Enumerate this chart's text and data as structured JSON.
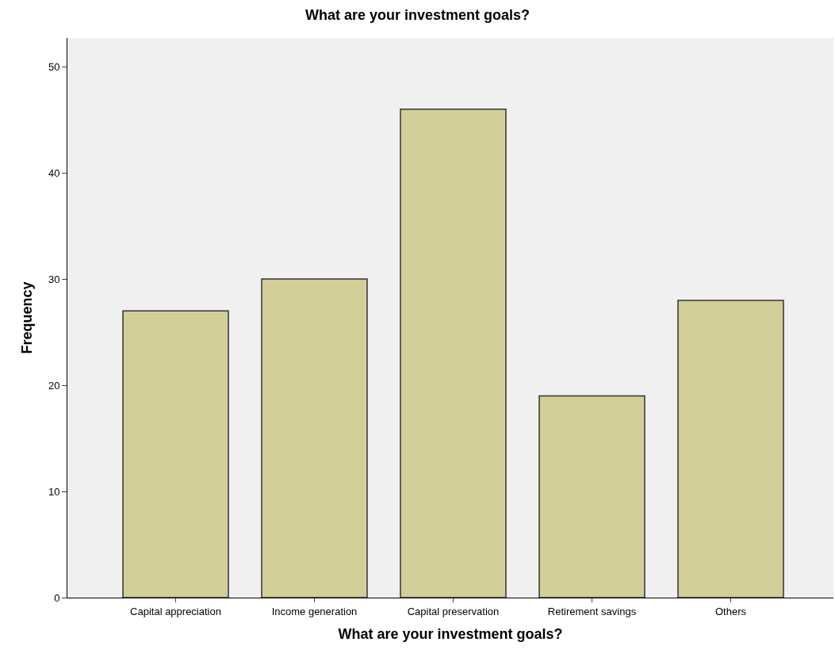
{
  "chart_data": {
    "type": "bar",
    "title": "What are your investment goals?",
    "xlabel": "What are your investment goals?",
    "ylabel": "Frequency",
    "categories": [
      "Capital appreciation",
      "Income generation",
      "Capital preservation",
      "Retirement savings",
      "Others"
    ],
    "values": [
      27,
      30,
      46,
      19,
      28
    ],
    "color": "#d3ce97",
    "ylim": [
      0,
      52.7
    ],
    "yticks": [
      0,
      10,
      20,
      30,
      40,
      50
    ],
    "grid": false
  }
}
